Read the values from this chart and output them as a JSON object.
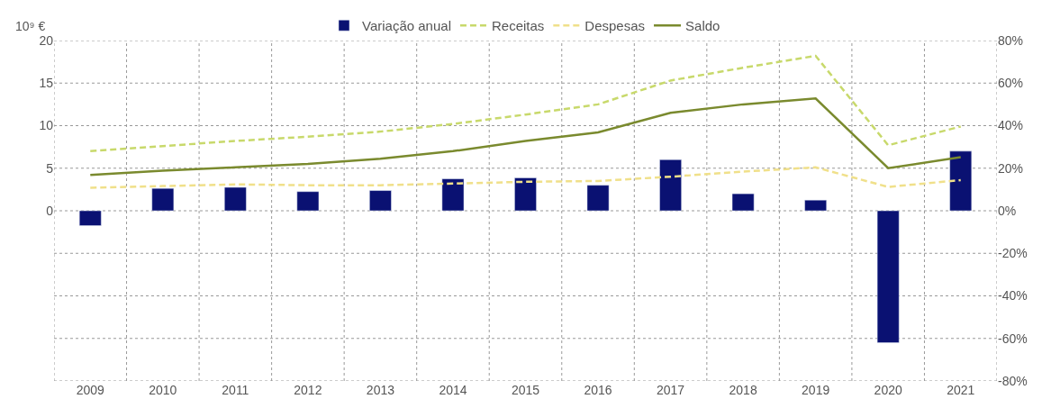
{
  "chart_data": {
    "type": "bar",
    "categories": [
      "2009",
      "2010",
      "2011",
      "2012",
      "2013",
      "2014",
      "2015",
      "2016",
      "2017",
      "2018",
      "2019",
      "2020",
      "2021"
    ],
    "ylabel": "10⁹ €",
    "series": [
      {
        "name": "Variação anual",
        "axis": "y2",
        "color": "#0a1172",
        "values": [
          -7,
          10.5,
          11,
          9,
          9.5,
          15,
          15.5,
          12,
          24,
          8,
          5,
          -62,
          28
        ]
      },
      {
        "name": "Receitas",
        "type": "line",
        "color": "#c8d96b",
        "line_style": "dashed",
        "values": [
          7.0,
          7.6,
          8.2,
          8.7,
          9.3,
          10.2,
          11.3,
          12.5,
          15.3,
          16.8,
          18.2,
          7.7,
          9.9
        ]
      },
      {
        "name": "Despesas",
        "type": "line",
        "color": "#f0e08a",
        "line_style": "dashed",
        "values": [
          2.7,
          2.9,
          3.1,
          3.0,
          3.0,
          3.2,
          3.4,
          3.5,
          4.0,
          4.6,
          5.1,
          2.8,
          3.6
        ]
      },
      {
        "name": "Saldo",
        "type": "line",
        "color": "#7a8a2e",
        "line_style": "solid",
        "values": [
          4.2,
          4.7,
          5.1,
          5.5,
          6.1,
          7.0,
          8.2,
          9.2,
          11.5,
          12.5,
          13.2,
          5.0,
          6.3
        ]
      }
    ],
    "ylim": [
      -20,
      20
    ],
    "yticks": [
      {
        "value": -20,
        "label": null
      },
      {
        "value": -15,
        "label": null
      },
      {
        "value": -10,
        "label": null
      },
      {
        "value": -5,
        "label": null
      },
      0,
      5,
      10,
      15,
      20
    ],
    "y2lim": [
      -80,
      80
    ],
    "y2ticks": [
      {
        "value": -80,
        "label": "-80%"
      },
      {
        "value": -60,
        "label": "-60%"
      },
      {
        "value": -40,
        "label": "-40%"
      },
      {
        "value": -20,
        "label": "-20%"
      },
      {
        "value": 0,
        "label": "0%"
      },
      {
        "value": 20,
        "label": "20%"
      },
      {
        "value": 40,
        "label": "40%"
      },
      {
        "value": 60,
        "label": "60%"
      },
      {
        "value": 80,
        "label": "80%"
      }
    ],
    "grid": true,
    "legend": "top"
  }
}
